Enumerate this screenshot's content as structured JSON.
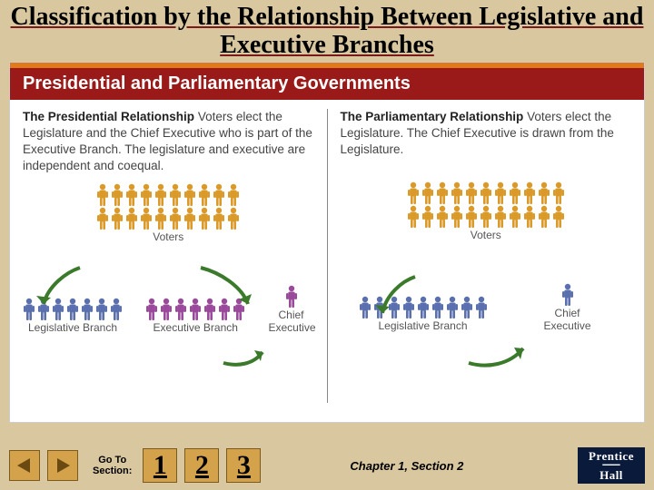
{
  "title": "Classification by the Relationship Between Legislative and Executive Branches",
  "card": {
    "header": "Presidential and Parliamentary Governments",
    "left": {
      "heading": "The Presidential Relationship",
      "body": "Voters elect the Legislature and the Chief Executive who is part of the Executive Branch. The legislature and executive are independent and coequal.",
      "voters_label": "Voters",
      "leg_label": "Legislative Branch",
      "exec_label": "Executive Branch",
      "chief_label": "Chief Executive",
      "colors": {
        "voters": "#d99a2a",
        "legislative": "#5a6fae",
        "executive": "#9a4a9a",
        "chief": "#9a4a9a"
      },
      "counts": {
        "voters_row": 10,
        "voters_rows": 2,
        "leg": 7,
        "exec": 7
      }
    },
    "right": {
      "heading": "The Parliamentary Relationship",
      "body": "Voters elect the Legislature. The Chief Executive is drawn from the Legislature.",
      "voters_label": "Voters",
      "leg_label": "Legislative Branch",
      "chief_label": "Chief Executive",
      "colors": {
        "voters": "#d99a2a",
        "legislative": "#5a6fae",
        "chief": "#5a6fae"
      },
      "counts": {
        "voters_row": 11,
        "voters_rows": 2,
        "leg": 9
      }
    },
    "arrow_color": "#3a7a2a"
  },
  "footer": {
    "goto_line1": "Go To",
    "goto_line2": "Section:",
    "buttons": [
      "1",
      "2",
      "3"
    ],
    "chapter": "Chapter 1, Section 2",
    "publisher_top": "Prentice",
    "publisher_bottom": "Hall"
  }
}
